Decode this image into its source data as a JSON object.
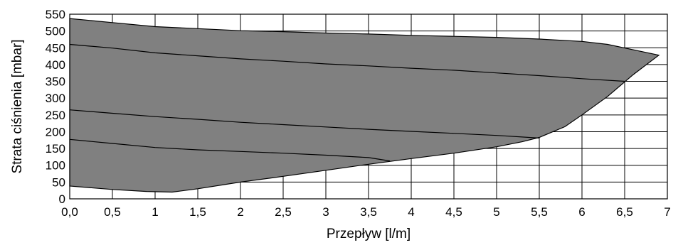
{
  "chart_data": {
    "type": "area",
    "xlabel": "Przepływ [l/m]",
    "ylabel": "Strata ciśnienia [mbar]",
    "xlim": [
      0,
      7
    ],
    "ylim": [
      0,
      550
    ],
    "x_ticks": [
      "0,0",
      "0,5",
      "1",
      "1,5",
      "2",
      "2,5",
      "3",
      "3,5",
      "4",
      "4,5",
      "5",
      "5,5",
      "6",
      "6,5",
      "7"
    ],
    "y_ticks": [
      "0",
      "50",
      "100",
      "150",
      "200",
      "250",
      "300",
      "350",
      "400",
      "450",
      "500",
      "550"
    ],
    "grid": true,
    "colors": {
      "region_fill": "#808080",
      "line": "#000000",
      "grid": "#000000"
    },
    "region": {
      "upper": [
        [
          0,
          537
        ],
        [
          0.5,
          525
        ],
        [
          1,
          513
        ],
        [
          1.5,
          507
        ],
        [
          2,
          501
        ],
        [
          2.5,
          498
        ],
        [
          3,
          494
        ],
        [
          3.5,
          491
        ],
        [
          4,
          487
        ],
        [
          4.5,
          484
        ],
        [
          5,
          481
        ],
        [
          5.5,
          476
        ],
        [
          6,
          469
        ],
        [
          6.3,
          460
        ],
        [
          6.6,
          444
        ],
        [
          6.9,
          428
        ]
      ],
      "lower": [
        [
          0,
          38
        ],
        [
          0.5,
          28
        ],
        [
          0.9,
          22
        ],
        [
          1.2,
          20
        ],
        [
          1.5,
          30
        ],
        [
          2,
          50
        ],
        [
          2.5,
          67
        ],
        [
          3,
          85
        ],
        [
          3.5,
          103
        ],
        [
          4,
          120
        ],
        [
          4.5,
          136
        ],
        [
          5,
          155
        ],
        [
          5.3,
          170
        ],
        [
          5.5,
          183
        ],
        [
          5.8,
          215
        ],
        [
          6,
          250
        ],
        [
          6.3,
          305
        ],
        [
          6.6,
          370
        ],
        [
          6.9,
          428
        ]
      ]
    },
    "series": [
      {
        "values": [
          [
            0,
            460
          ],
          [
            0.5,
            449
          ],
          [
            1,
            435
          ],
          [
            1.5,
            426
          ],
          [
            2,
            417
          ],
          [
            2.5,
            410
          ],
          [
            3,
            402
          ],
          [
            3.5,
            396
          ],
          [
            4,
            389
          ],
          [
            4.5,
            383
          ],
          [
            5,
            375
          ],
          [
            5.5,
            367
          ],
          [
            6,
            358
          ],
          [
            6.5,
            350
          ]
        ]
      },
      {
        "values": [
          [
            0,
            265
          ],
          [
            0.5,
            255
          ],
          [
            1,
            245
          ],
          [
            1.5,
            237
          ],
          [
            2,
            228
          ],
          [
            2.5,
            221
          ],
          [
            3,
            214
          ],
          [
            3.5,
            207
          ],
          [
            4,
            201
          ],
          [
            4.5,
            195
          ],
          [
            5,
            189
          ],
          [
            5.5,
            181
          ]
        ]
      },
      {
        "values": [
          [
            0,
            177
          ],
          [
            0.5,
            165
          ],
          [
            1,
            153
          ],
          [
            1.5,
            146
          ],
          [
            2,
            141
          ],
          [
            2.5,
            136
          ],
          [
            3,
            130
          ],
          [
            3.5,
            123
          ],
          [
            3.75,
            113
          ]
        ]
      }
    ]
  }
}
